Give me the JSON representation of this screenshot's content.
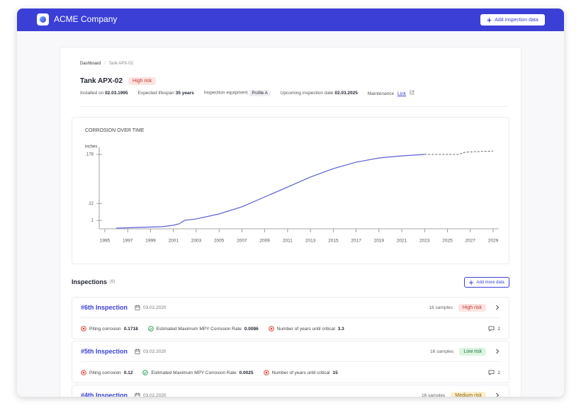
{
  "header": {
    "company": "ACME Company",
    "button": "Add inspection data"
  },
  "breadcrumb": [
    "Dashboard",
    "Tank APX-02"
  ],
  "tank": {
    "title": "Tank APX-02",
    "risk": "High risk",
    "meta": [
      {
        "label": "Installed on",
        "value": "02.03.1995"
      },
      {
        "label": "Expected lifespan",
        "value": "35 years"
      },
      {
        "label": "Inspection equipment",
        "value": "Profile A"
      },
      {
        "label": "Upcoming inspection date",
        "value": "02.03.2025"
      },
      {
        "label": "Maintenance",
        "value": "Link"
      }
    ]
  },
  "chart_data": {
    "type": "line",
    "title": "CORROSION OVER TIME",
    "y_label": "inches",
    "xlim": [
      1995,
      2029
    ],
    "xticks": [
      1995,
      1997,
      1999,
      2001,
      2003,
      2005,
      2007,
      2009,
      2011,
      2013,
      2015,
      2017,
      2019,
      2021,
      2023,
      2025,
      2027,
      2029
    ],
    "ylim": [
      0.09,
      0.183
    ],
    "yticks": [
      {
        "value": 0.1,
        "label": ".1"
      },
      {
        "value": 0.12,
        "label": ".12"
      },
      {
        "value": 0.178,
        "label": ".178"
      }
    ],
    "series": [
      {
        "color": "#5b5fd6",
        "line_style": "solid",
        "x": [
          1996,
          1998,
          2000,
          2001,
          2001.5,
          2002,
          2003,
          2005,
          2007,
          2009,
          2011,
          2013,
          2015,
          2017,
          2019,
          2021,
          2023
        ],
        "values": [
          0.0908,
          0.0917,
          0.0925,
          0.0942,
          0.0959,
          0.1001,
          0.1017,
          0.1076,
          0.116,
          0.1277,
          0.1394,
          0.1512,
          0.1612,
          0.1688,
          0.1738,
          0.1763,
          0.178
        ]
      },
      {
        "color": "#555555",
        "line_style": "dashed",
        "x": [
          2023,
          2025,
          2026,
          2026.5,
          2027,
          2029
        ],
        "values": [
          0.178,
          0.178,
          0.178,
          0.1805,
          0.181,
          0.182
        ]
      }
    ]
  },
  "inspections": {
    "title": "Inspections",
    "count": "(6)",
    "button": "Add more data",
    "items": [
      {
        "name": "#6th Inspection",
        "date": "03.02.2020",
        "samples": "16 samples",
        "risk": "High risk",
        "badge_color": "#fde4e3",
        "badge_text_color": "#c0392b",
        "metrics": [
          {
            "label": "Piting corrosion",
            "value": 0.1718,
            "icon": "error"
          },
          {
            "label": "Estimated Maximum MPY Corrosion Rate",
            "value": 0.0086,
            "icon": "success"
          },
          {
            "label": "Number of years until critical",
            "value": 3.3,
            "icon": "error"
          }
        ],
        "comments": 2
      },
      {
        "name": "#5th Inspection",
        "date": "03.02.2020",
        "samples": "16 samples",
        "risk": "Low risk",
        "badge_color": "#dcf5e3",
        "badge_text_color": "#1e7a3d",
        "metrics": [
          {
            "label": "Piting corrosion",
            "value": 0.12,
            "icon": "error"
          },
          {
            "label": "Estimated Maximum MPY Corrosion Rate",
            "value": 0.0025,
            "icon": "success"
          },
          {
            "label": "Number of years until critical",
            "value": 15,
            "icon": "error"
          }
        ],
        "comments": 2
      },
      {
        "name": "#4th Inspection",
        "date": "03.02.2020",
        "samples": "16 samples",
        "risk": "Medium risk",
        "badge_color": "#fdf0cf",
        "badge_text_color": "#8a6200"
      }
    ]
  }
}
